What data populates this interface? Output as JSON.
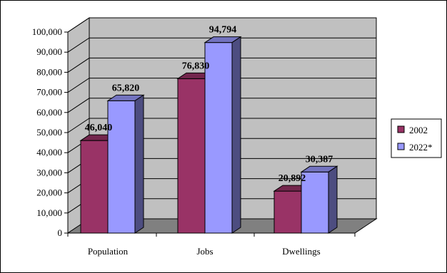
{
  "chart_data": {
    "type": "bar",
    "three_d": true,
    "title": "",
    "xlabel": "",
    "ylabel": "",
    "categories": [
      "Population",
      "Jobs",
      "Dwellings"
    ],
    "series": [
      {
        "name": "2002",
        "values": [
          46040,
          76830,
          20892
        ],
        "color": "#993366",
        "label_texts": [
          "46,040",
          "76,830",
          "20,892"
        ]
      },
      {
        "name": "2022*",
        "values": [
          65820,
          94794,
          30387
        ],
        "color": "#9999ff",
        "label_texts": [
          "65,820",
          "94,794",
          "30,387"
        ]
      }
    ],
    "ylim": [
      0,
      100000
    ],
    "yticks": [
      0,
      10000,
      20000,
      30000,
      40000,
      50000,
      60000,
      70000,
      80000,
      90000,
      100000
    ],
    "ytick_labels": [
      "0",
      "10,000",
      "20,000",
      "30,000",
      "40,000",
      "50,000",
      "60,000",
      "70,000",
      "80,000",
      "90,000",
      "100,000"
    ],
    "grid": true,
    "wall_color": "#c0c0c0",
    "floor_color": "#808080",
    "legend": {
      "placement": "right",
      "entries": [
        "2002",
        "2022*"
      ]
    }
  }
}
